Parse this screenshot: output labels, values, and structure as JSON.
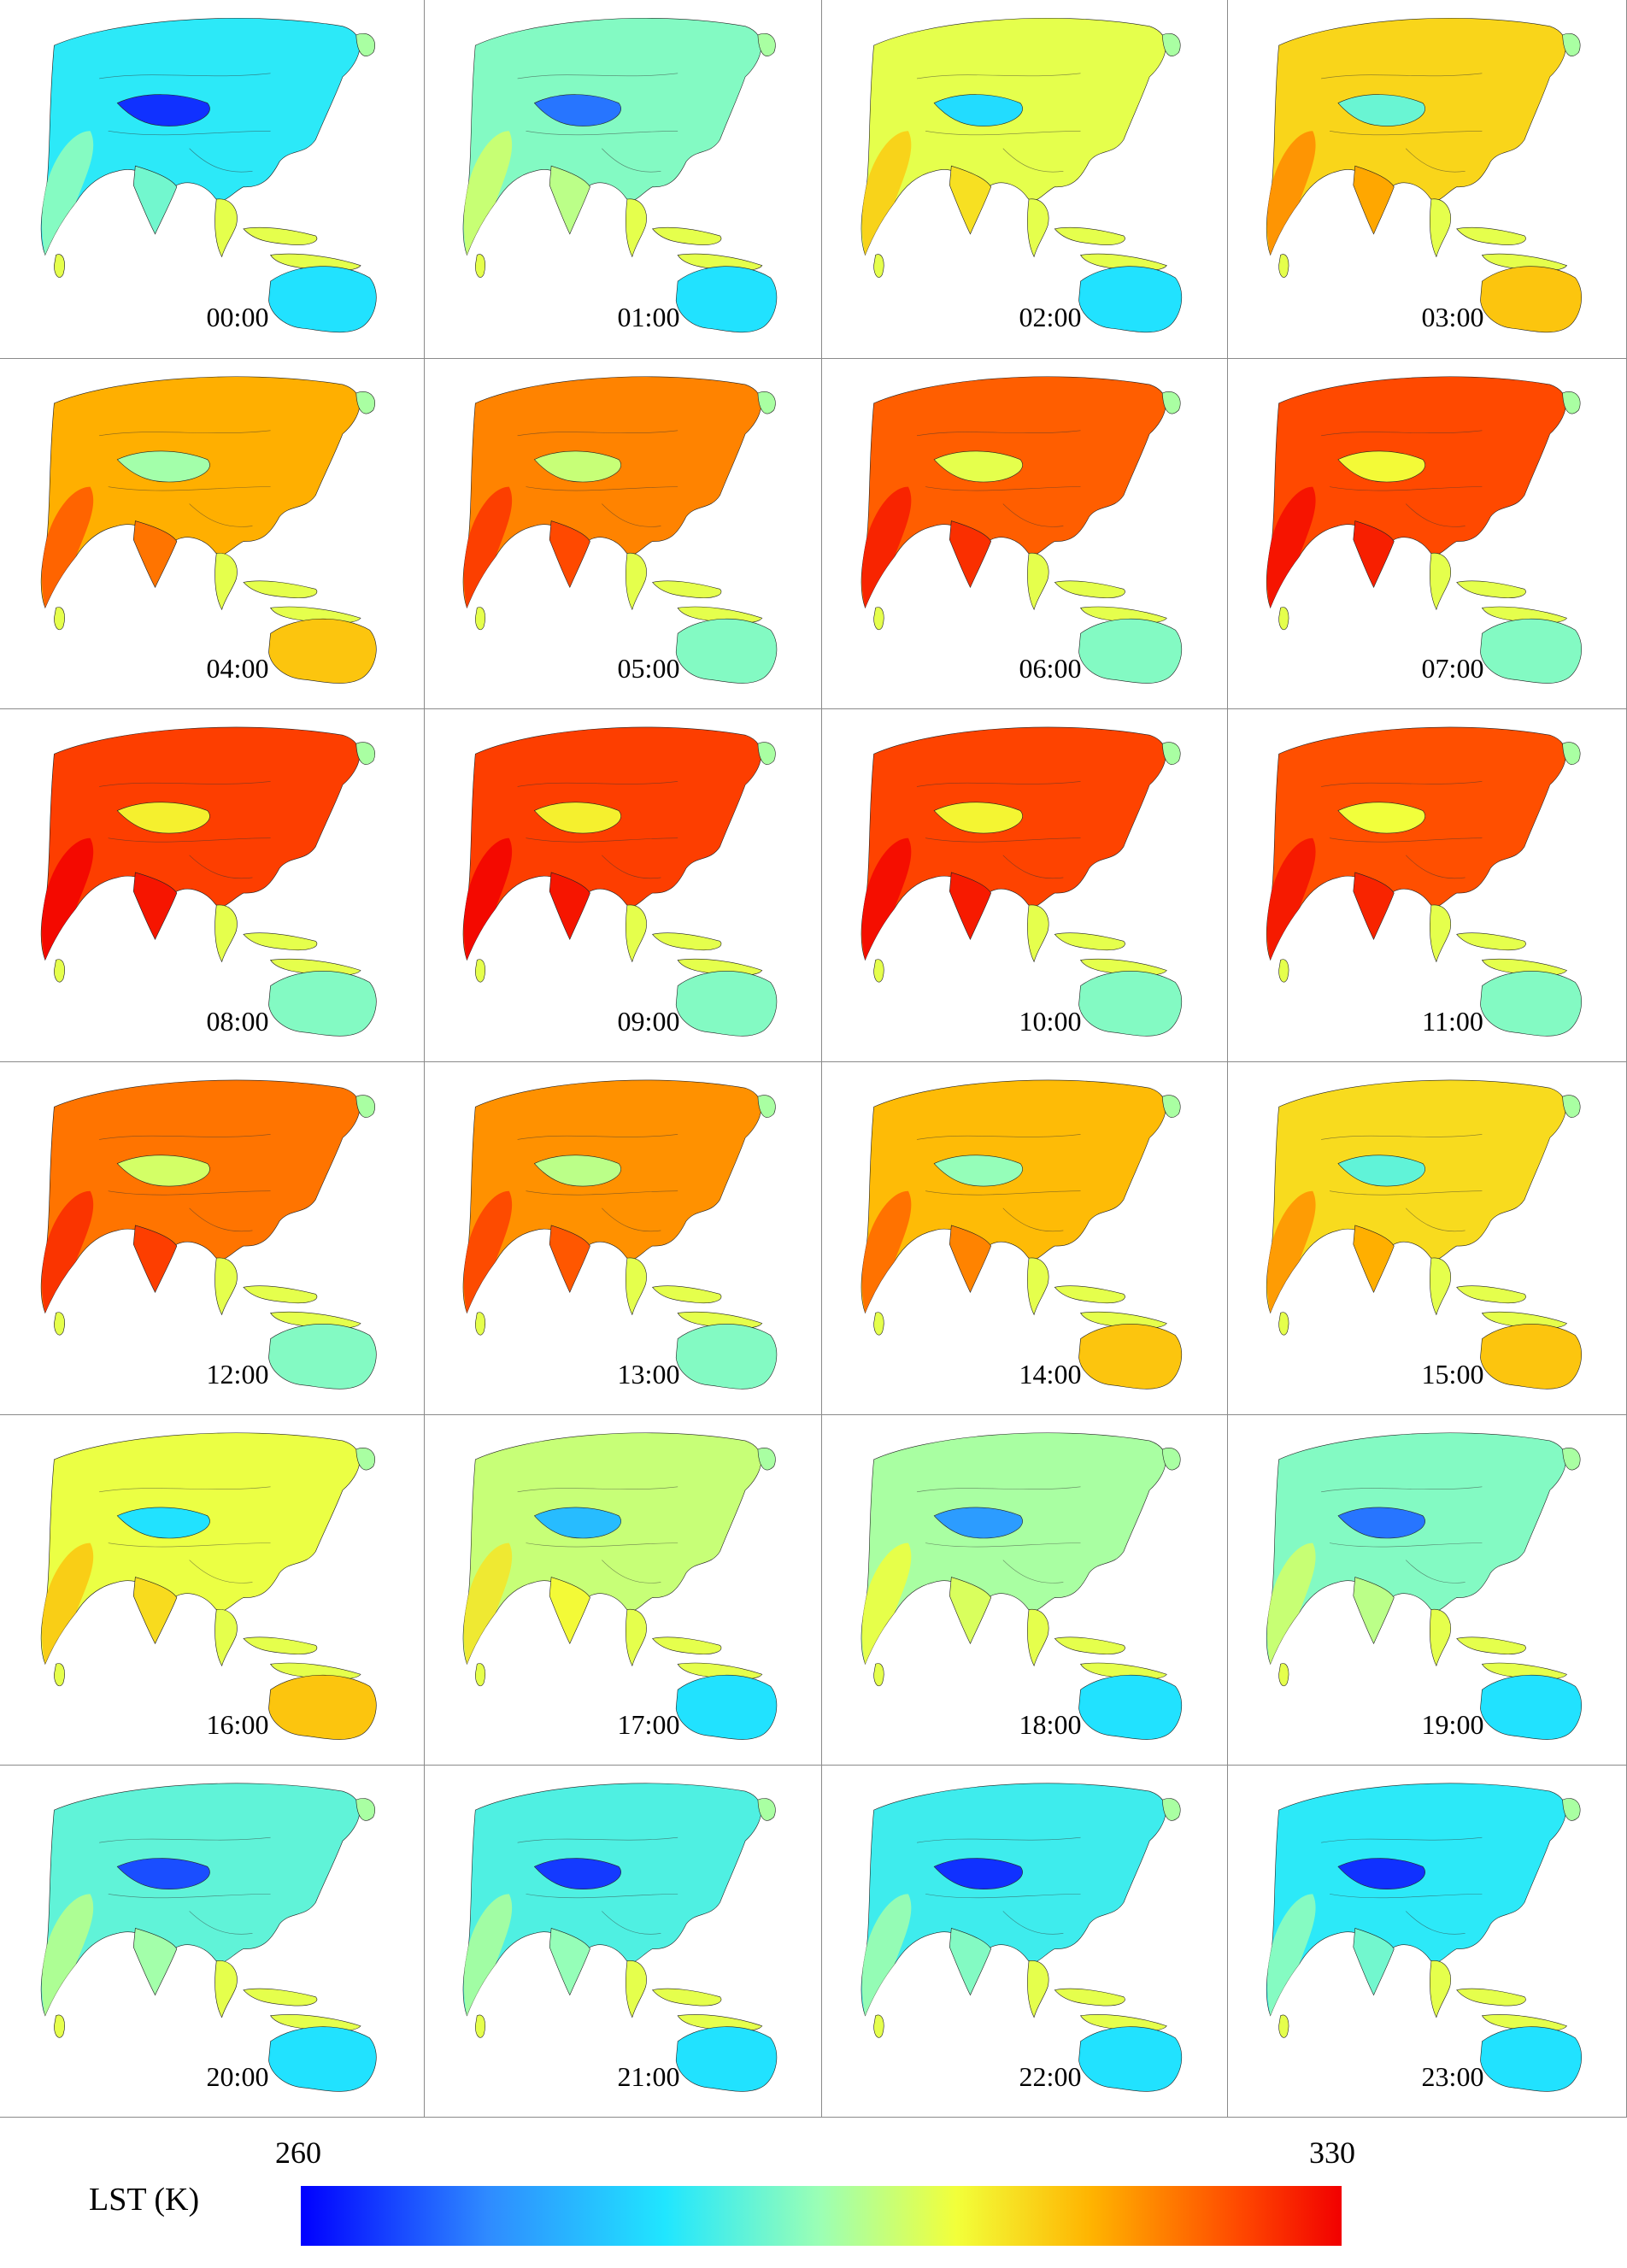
{
  "panels": [
    {
      "label": "00:00",
      "level": 0.3
    },
    {
      "label": "01:00",
      "level": 0.4
    },
    {
      "label": "02:00",
      "level": 0.55
    },
    {
      "label": "03:00",
      "level": 0.65
    },
    {
      "label": "04:00",
      "level": 0.72
    },
    {
      "label": "05:00",
      "level": 0.78
    },
    {
      "label": "06:00",
      "level": 0.83
    },
    {
      "label": "07:00",
      "level": 0.86
    },
    {
      "label": "08:00",
      "level": 0.88
    },
    {
      "label": "09:00",
      "level": 0.88
    },
    {
      "label": "10:00",
      "level": 0.87
    },
    {
      "label": "11:00",
      "level": 0.85
    },
    {
      "label": "12:00",
      "level": 0.8
    },
    {
      "label": "13:00",
      "level": 0.76
    },
    {
      "label": "14:00",
      "level": 0.7
    },
    {
      "label": "15:00",
      "level": 0.64
    },
    {
      "label": "16:00",
      "level": 0.56
    },
    {
      "label": "17:00",
      "level": 0.5
    },
    {
      "label": "18:00",
      "level": 0.45
    },
    {
      "label": "19:00",
      "level": 0.4
    },
    {
      "label": "20:00",
      "level": 0.36
    },
    {
      "label": "21:00",
      "level": 0.34
    },
    {
      "label": "22:00",
      "level": 0.32
    },
    {
      "label": "23:00",
      "level": 0.3
    }
  ],
  "legend": {
    "title": "LST (K)",
    "min": "260",
    "max": "330",
    "colors": [
      "#0000ff",
      "#2f8bff",
      "#20e6ff",
      "#9cffb4",
      "#f2ff3a",
      "#ffb300",
      "#ff4a00",
      "#f20000"
    ]
  }
}
